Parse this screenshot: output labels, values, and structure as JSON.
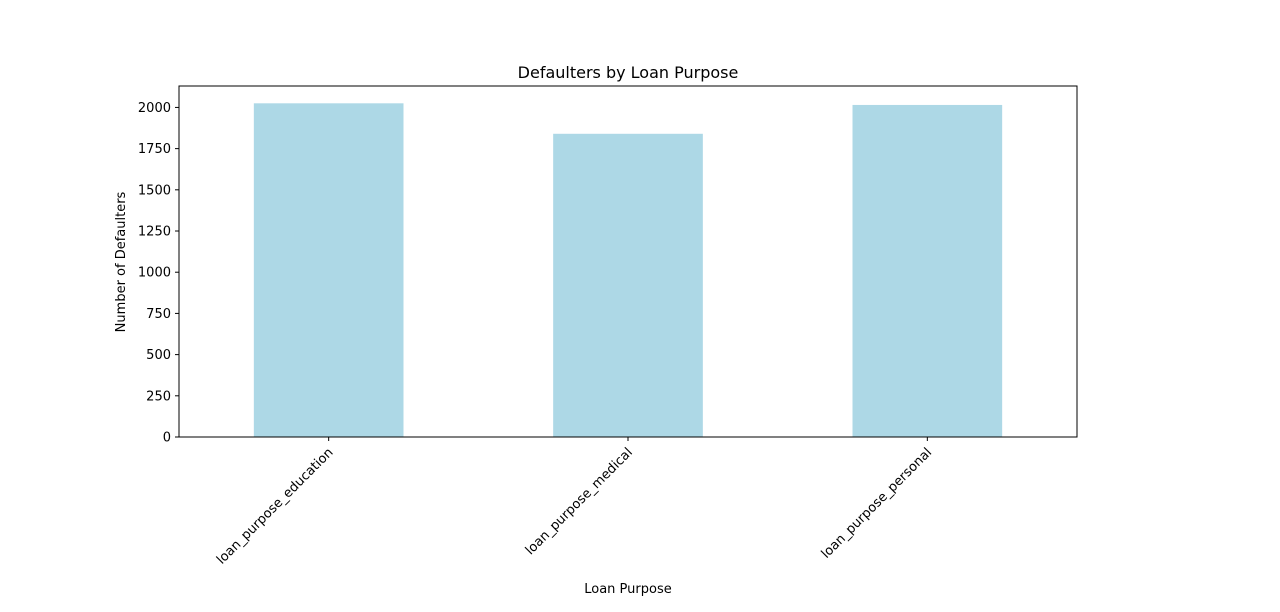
{
  "chart_data": {
    "type": "bar",
    "title": "Defaulters by Loan Purpose",
    "xlabel": "Loan Purpose",
    "ylabel": "Number of Defaulters",
    "categories": [
      "loan_purpose_education",
      "loan_purpose_medical",
      "loan_purpose_personal"
    ],
    "values": [
      2025,
      1840,
      2015
    ],
    "ylim": [
      0,
      2130
    ],
    "yticks": [
      0,
      250,
      500,
      750,
      1000,
      1250,
      1500,
      1750,
      2000
    ],
    "bar_color": "#add8e6",
    "grid": false,
    "legend": "none"
  }
}
